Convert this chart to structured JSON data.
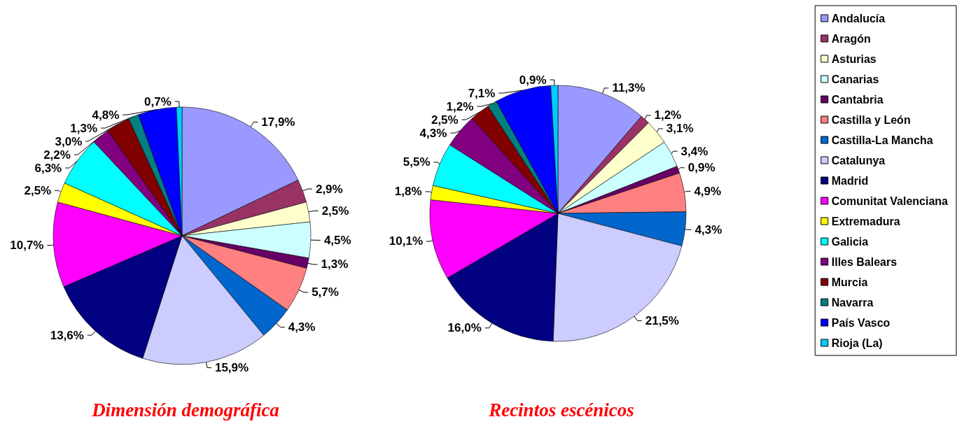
{
  "chart_data": {
    "type": "pie",
    "categories": [
      "Andalucía",
      "Aragón",
      "Asturias",
      "Canarias",
      "Cantabria",
      "Castilla y León",
      "Castilla-La Mancha",
      "Catalunya",
      "Madrid",
      "Comunitat Valenciana",
      "Extremadura",
      "Galicia",
      "Illes Balears",
      "Murcia",
      "Navarra",
      "País Vasco",
      "Rioja (La)"
    ],
    "colors": [
      "#9999ff",
      "#993366",
      "#ffffcc",
      "#ccffff",
      "#660066",
      "#ff8080",
      "#0066cc",
      "#ccccff",
      "#000080",
      "#ff00ff",
      "#ffff00",
      "#00ffff",
      "#800080",
      "#800000",
      "#008080",
      "#0000ff",
      "#00ccff"
    ],
    "series": [
      {
        "name": "Dimensión demográfica",
        "values": [
          17.9,
          2.9,
          2.5,
          4.5,
          1.3,
          5.7,
          4.3,
          15.9,
          13.6,
          10.7,
          2.5,
          6.3,
          2.2,
          3.0,
          1.3,
          4.8,
          0.7
        ],
        "value_labels": [
          "17,9%",
          "2,9%",
          "2,5%",
          "4,5%",
          "1,3%",
          "5,7%",
          "4,3%",
          "15,9%",
          "13,6%",
          "10,7%",
          "2,5%",
          "6,3%",
          "2,2%",
          "3,0%",
          "1,3%",
          "4,8%",
          "0,7%"
        ]
      },
      {
        "name": "Recintos escénicos",
        "values": [
          11.3,
          1.2,
          3.1,
          3.4,
          0.9,
          4.9,
          4.3,
          21.5,
          16.0,
          10.1,
          1.8,
          5.5,
          4.3,
          2.5,
          1.2,
          7.1,
          0.9
        ],
        "value_labels": [
          "11,3%",
          "1,2%",
          "3,1%",
          "3,4%",
          "0,9%",
          "4,9%",
          "4,3%",
          "21,5%",
          "16,0%",
          "10,1%",
          "1,8%",
          "5,5%",
          "4,3%",
          "2,5%",
          "1,2%",
          "7,1%",
          "0,9%"
        ]
      }
    ],
    "legend": "right"
  }
}
